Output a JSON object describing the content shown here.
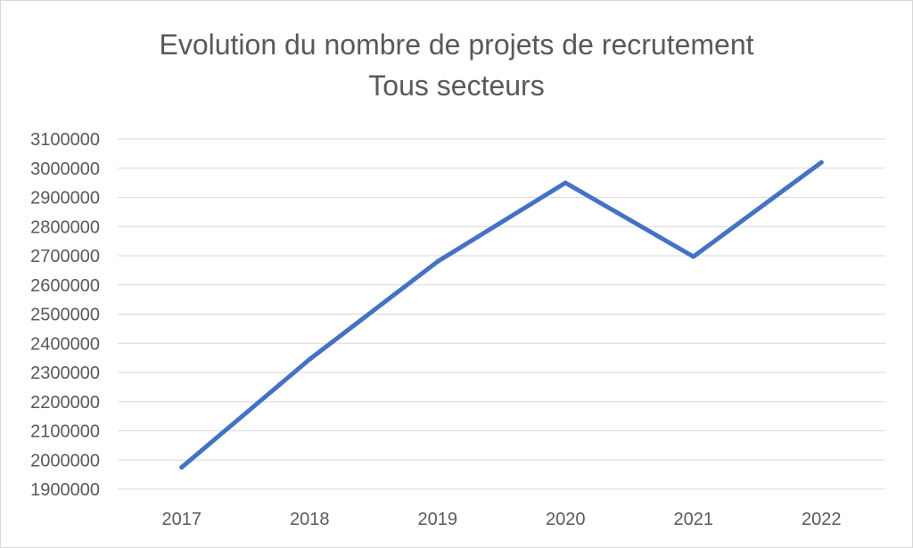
{
  "chart_data": {
    "type": "line",
    "title": "Evolution du nombre de projets de recrutement",
    "subtitle": "Tous secteurs",
    "xlabel": "",
    "ylabel": "",
    "categories": [
      "2017",
      "2018",
      "2019",
      "2020",
      "2021",
      "2022"
    ],
    "series": [
      {
        "values": [
          1975000,
          2345000,
          2680000,
          2950000,
          2697000,
          3020000
        ]
      }
    ],
    "ylim": [
      1900000,
      3100000
    ],
    "yticks": [
      1900000,
      2000000,
      2100000,
      2200000,
      2300000,
      2400000,
      2500000,
      2600000,
      2700000,
      2800000,
      2900000,
      3000000,
      3100000
    ],
    "grid": true,
    "legend": "none",
    "colors": {
      "line": "#4472c4",
      "grid": "#d9d9d9",
      "text": "#595959"
    }
  }
}
